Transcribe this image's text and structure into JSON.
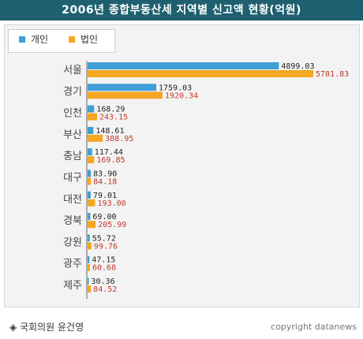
{
  "chart_data": {
    "type": "bar",
    "orientation": "horizontal",
    "title": "2006년 종합부동산세 지역별 신고액 현황(억원)",
    "categories": [
      "서울",
      "경기",
      "인천",
      "부산",
      "충남",
      "대구",
      "대전",
      "경북",
      "강원",
      "광주",
      "제주"
    ],
    "series": [
      {
        "name": "개인",
        "color": "#3f9fd6",
        "values": [
          4899.03,
          1759.03,
          168.29,
          148.61,
          117.44,
          83.9,
          79.01,
          69.0,
          55.72,
          47.15,
          30.36
        ],
        "labels": [
          "4899.03",
          "1759.03",
          "168.29",
          "148.61",
          "117.44",
          "83.90",
          "79.01",
          "69.00",
          "55.72",
          "47.15",
          "30.36"
        ],
        "label_color": "#222222"
      },
      {
        "name": "법인",
        "color": "#f5a623",
        "values": [
          5781.83,
          1920.34,
          243.15,
          388.95,
          169.85,
          84.18,
          193.0,
          205.99,
          99.76,
          60.68,
          84.52
        ],
        "labels": [
          "5781.83",
          "1920.34",
          "243.15",
          "388.95",
          "169.85",
          "84.18",
          "193.00",
          "205.99",
          "99.76",
          "60.68",
          "84.52"
        ],
        "label_color": "#c0392b"
      }
    ],
    "xlim": [
      0,
      6000
    ],
    "grid": false,
    "legend_position": "top-left"
  },
  "footer": {
    "source": "◈ 국회의원 윤건영",
    "copyright": "copyright datanews"
  }
}
